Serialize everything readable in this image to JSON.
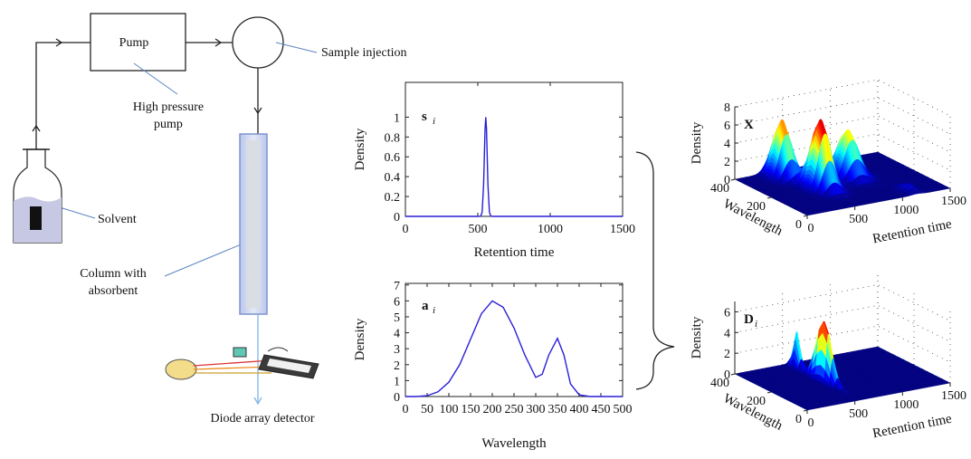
{
  "diagram": {
    "pump": "Pump",
    "high_pressure_pump": [
      "High pressure",
      "pump"
    ],
    "sample_injection": "Sample injection",
    "solvent": "Solvent",
    "column": [
      "Column with",
      "absorbent"
    ],
    "detector": "Diode array detector"
  },
  "chart_data": [
    {
      "type": "line",
      "annotation": [
        "s",
        "i"
      ],
      "xlabel": "Retention time",
      "ylabel": "Density",
      "x": [
        0,
        500,
        520,
        530,
        540,
        550,
        555,
        560,
        570,
        580,
        590,
        610,
        1500
      ],
      "values": [
        0,
        0,
        0.002,
        0.044,
        0.32,
        0.88,
        1,
        0.88,
        0.32,
        0.044,
        0.002,
        0,
        0
      ],
      "color": "#2a1fd6",
      "xlim": [
        0,
        1500
      ],
      "xticks": [
        0,
        500,
        1000,
        1500
      ],
      "ylim": [
        0,
        1.35
      ],
      "yticks": [
        0,
        0.2,
        0.4,
        0.6,
        0.8,
        1
      ]
    },
    {
      "type": "line",
      "annotation": [
        "a",
        "i"
      ],
      "xlabel": "Wavelength",
      "ylabel": "Density",
      "x": [
        0,
        25,
        50,
        75,
        100,
        125,
        150,
        175,
        200,
        225,
        250,
        275,
        300,
        315,
        330,
        350,
        365,
        380,
        400,
        425,
        450,
        500
      ],
      "values": [
        0,
        0,
        0.05,
        0.3,
        0.9,
        2.0,
        3.6,
        5.2,
        6,
        5.6,
        4.3,
        2.6,
        1.2,
        1.4,
        2.6,
        3.65,
        2.6,
        0.8,
        0.1,
        0,
        0,
        0
      ],
      "color": "#2a1fd6",
      "xlim": [
        0,
        500
      ],
      "xticks": [
        0,
        50,
        100,
        150,
        200,
        250,
        300,
        350,
        400,
        450,
        500
      ],
      "ylim": [
        0,
        7.1
      ],
      "yticks": [
        0,
        1,
        2,
        3,
        4,
        5,
        6,
        7
      ]
    },
    {
      "type": "surface3d",
      "annotation": [
        "X"
      ],
      "xlabel": "Retention time",
      "ylabel": "Wavelength",
      "zlabel": "Density",
      "xlim": [
        0,
        1500
      ],
      "xticks": [
        0,
        500,
        1000,
        1500
      ],
      "ylim": [
        0,
        400
      ],
      "yticks": [
        0,
        200,
        400
      ],
      "zlim": [
        0,
        8
      ],
      "zticks": [
        0,
        2,
        4,
        6,
        8
      ],
      "peaks": [
        {
          "retention": 400,
          "wavelength": 350,
          "density": 6.3,
          "retention_width": 70,
          "wavelength_width": 35
        },
        {
          "retention": 520,
          "wavelength": 200,
          "density": 7.6,
          "retention_width": 70,
          "wavelength_width": 40
        },
        {
          "retention": 900,
          "wavelength": 250,
          "density": 5.2,
          "retention_width": 80,
          "wavelength_width": 40
        },
        {
          "retention": 1150,
          "wavelength": 50,
          "density": 0.7,
          "retention_width": 50,
          "wavelength_width": 25
        }
      ]
    },
    {
      "type": "surface3d",
      "annotation": [
        "D",
        "i"
      ],
      "xlabel": "Retention time",
      "ylabel": "Wavelength",
      "zlabel": "Density",
      "xlim": [
        0,
        1500
      ],
      "xticks": [
        0,
        500,
        1000,
        1500
      ],
      "ylim": [
        0,
        400
      ],
      "yticks": [
        0,
        200,
        400
      ],
      "zlim": [
        0,
        7
      ],
      "zticks": [
        0,
        2,
        4,
        6
      ],
      "peaks": [
        {
          "retention": 555,
          "wavelength": 200,
          "density": 6,
          "retention_width": 22,
          "wavelength_width": 40
        },
        {
          "retention": 555,
          "wavelength": 350,
          "density": 3.6,
          "retention_width": 22,
          "wavelength_width": 16
        }
      ]
    }
  ]
}
